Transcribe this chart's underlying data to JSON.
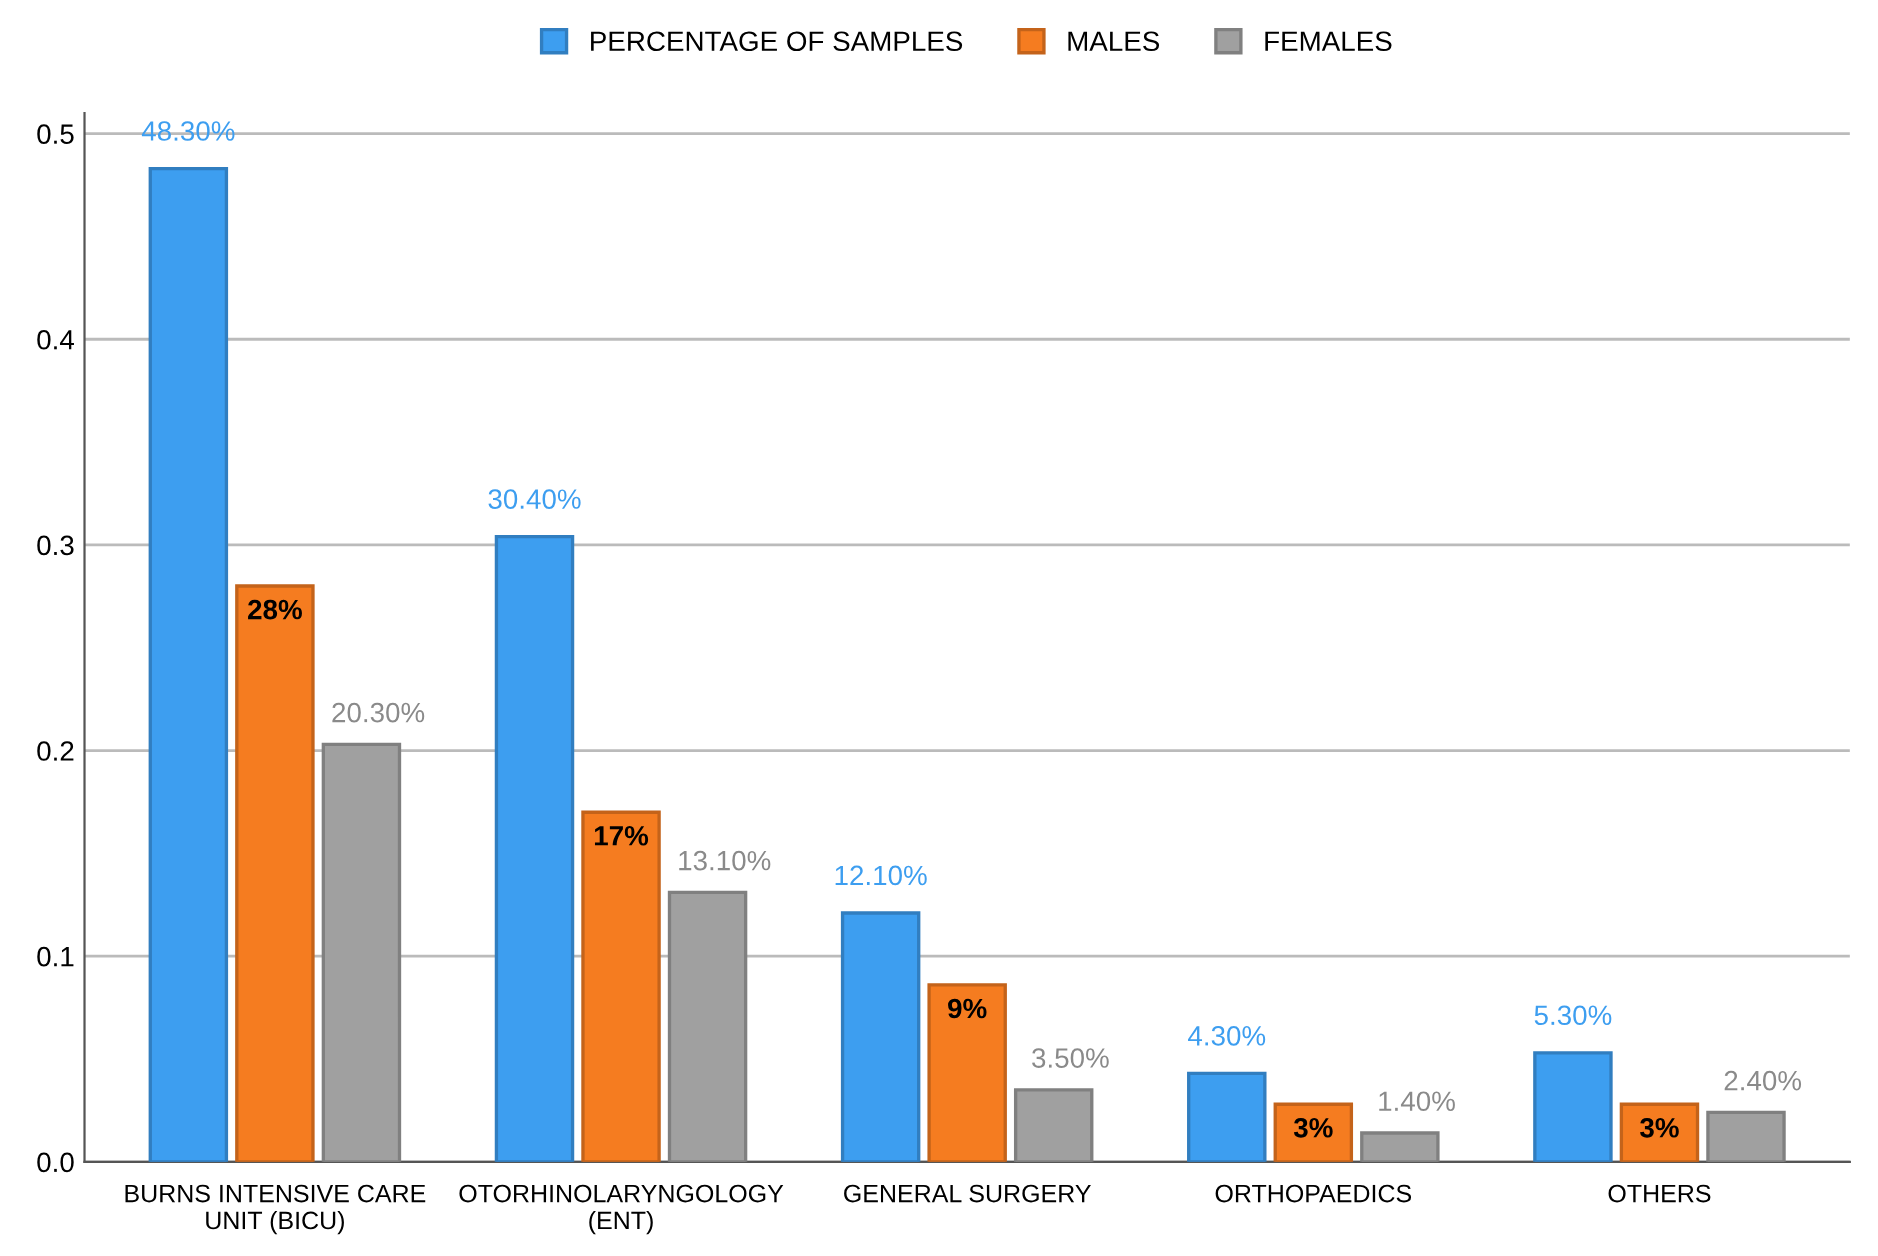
{
  "chart_data": {
    "type": "bar",
    "categories": [
      "BURNS INTENSIVE CARE\nUNIT (BICU)",
      "OTORHINOLARYNGOLOGY\n(ENT)",
      "GENERAL SURGERY",
      "ORTHOPAEDICS",
      "OTHERS"
    ],
    "series": [
      {
        "name": "PERCENTAGE OF SAMPLES",
        "color": "#3d9ef0",
        "values": [
          0.483,
          0.304,
          0.121,
          0.043,
          0.053
        ],
        "value_labels": [
          "48.30%",
          "30.40%",
          "12.10%",
          "4.30%",
          "5.30%"
        ]
      },
      {
        "name": "MALES",
        "color": "#f57c20",
        "values": [
          0.28,
          0.17,
          0.086,
          0.028,
          0.028
        ],
        "value_labels": [
          "28%",
          "17%",
          "9%",
          "3%",
          "3%"
        ]
      },
      {
        "name": "FEMALES",
        "color": "#a0a0a0",
        "values": [
          0.203,
          0.131,
          0.035,
          0.014,
          0.024
        ],
        "value_labels": [
          "20.30%",
          "13.10%",
          "3.50%",
          "1.40%",
          "2.40%"
        ]
      }
    ],
    "ylim": [
      0,
      0.51
    ],
    "yticks": [
      {
        "value": 0,
        "label": "0.0"
      },
      0.1,
      0.2,
      0.3,
      0.4,
      0.5
    ],
    "grid": "y",
    "legend": "top"
  }
}
